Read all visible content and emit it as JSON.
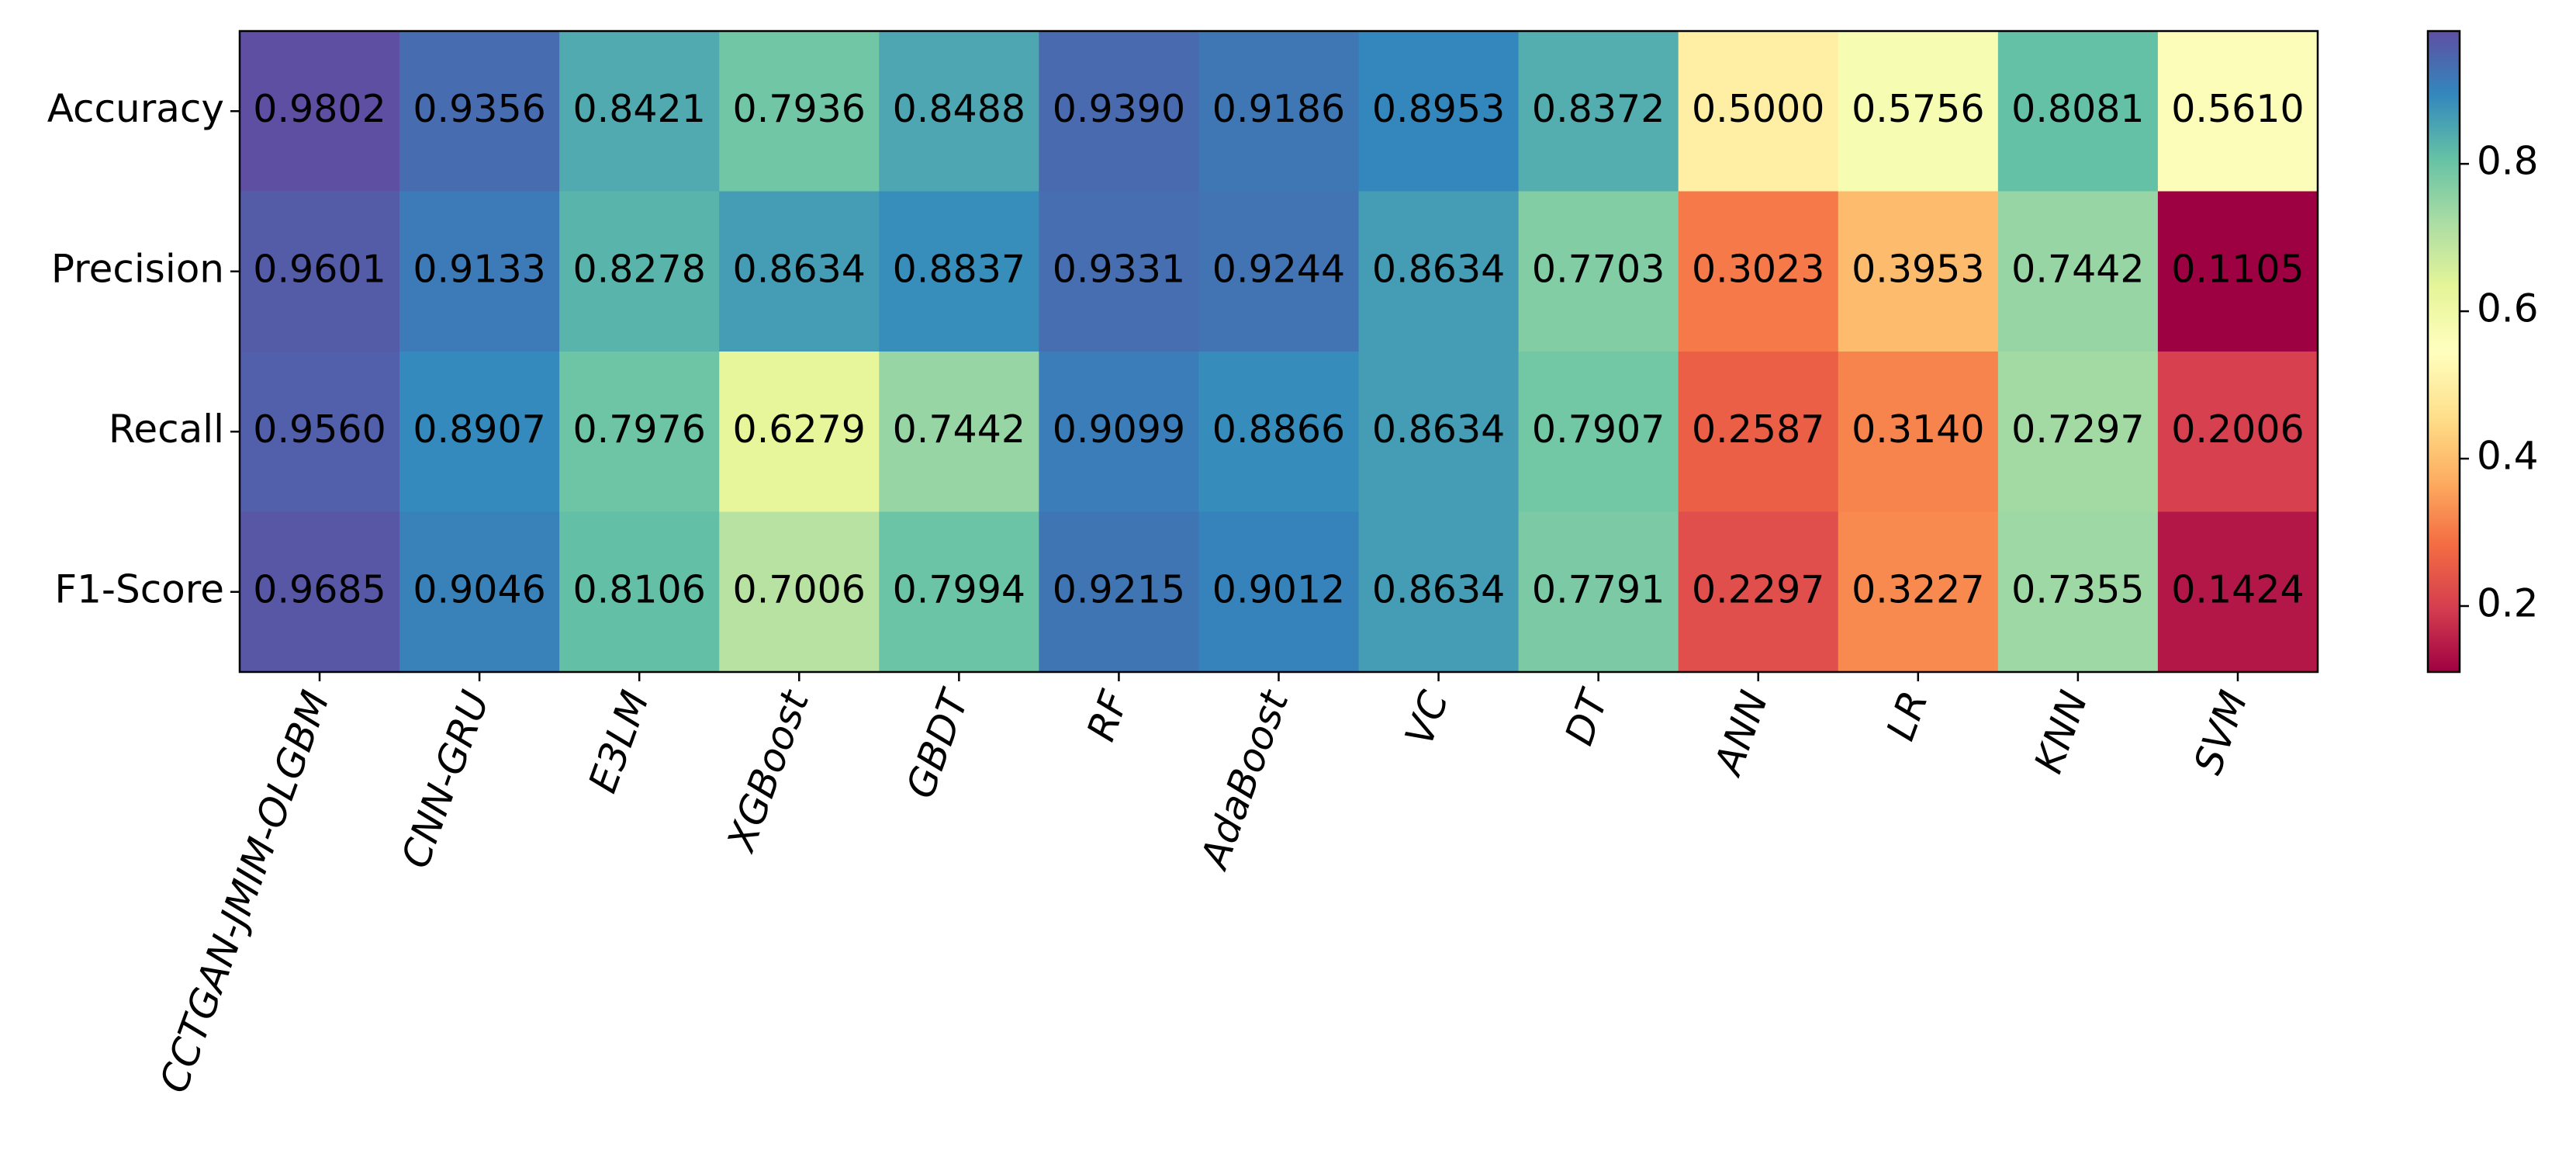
{
  "chart_data": {
    "type": "heatmap",
    "x": [
      "CCTGAN-JMIM-OLGBM",
      "CNN-GRU",
      "E3LM",
      "XGBoost",
      "GBDT",
      "RF",
      "AdaBoost",
      "VC",
      "DT",
      "ANN",
      "LR",
      "KNN",
      "SVM"
    ],
    "y": [
      "Accuracy",
      "Precision",
      "Recall",
      "F1-Score"
    ],
    "z": [
      [
        0.9802,
        0.9356,
        0.8421,
        0.7936,
        0.8488,
        0.939,
        0.9186,
        0.8953,
        0.8372,
        0.5,
        0.5756,
        0.8081,
        0.561
      ],
      [
        0.9601,
        0.9133,
        0.8278,
        0.8634,
        0.8837,
        0.9331,
        0.9244,
        0.8634,
        0.7703,
        0.3023,
        0.3953,
        0.7442,
        0.1105
      ],
      [
        0.956,
        0.8907,
        0.7976,
        0.6279,
        0.7442,
        0.9099,
        0.8866,
        0.8634,
        0.7907,
        0.2587,
        0.314,
        0.7297,
        0.2006
      ],
      [
        0.9685,
        0.9046,
        0.8106,
        0.7006,
        0.7994,
        0.9215,
        0.9012,
        0.8634,
        0.7791,
        0.2297,
        0.3227,
        0.7355,
        0.1424
      ]
    ],
    "value_labels": [
      [
        "0.9802",
        "0.9356",
        "0.8421",
        "0.7936",
        "0.8488",
        "0.9390",
        "0.9186",
        "0.8953",
        "0.8372",
        "0.5000",
        "0.5756",
        "0.8081",
        "0.5610"
      ],
      [
        "0.9601",
        "0.9133",
        "0.8278",
        "0.8634",
        "0.8837",
        "0.9331",
        "0.9244",
        "0.8634",
        "0.7703",
        "0.3023",
        "0.3953",
        "0.7442",
        "0.1105"
      ],
      [
        "0.9560",
        "0.8907",
        "0.7976",
        "0.6279",
        "0.7442",
        "0.9099",
        "0.8866",
        "0.8634",
        "0.7907",
        "0.2587",
        "0.3140",
        "0.7297",
        "0.2006"
      ],
      [
        "0.9685",
        "0.9046",
        "0.8106",
        "0.7006",
        "0.7994",
        "0.9215",
        "0.9012",
        "0.8634",
        "0.7791",
        "0.2297",
        "0.3227",
        "0.7355",
        "0.1424"
      ]
    ],
    "zlim": [
      0.1105,
      0.9802
    ],
    "colorbar_ticks": [
      0.2,
      0.4,
      0.6,
      0.8
    ],
    "colormap": [
      "#9e0142",
      "#d53e4f",
      "#f46d43",
      "#fdae61",
      "#fee08b",
      "#ffffbf",
      "#e6f598",
      "#abdda4",
      "#66c2a5",
      "#3288bd",
      "#5e4fa2"
    ]
  }
}
